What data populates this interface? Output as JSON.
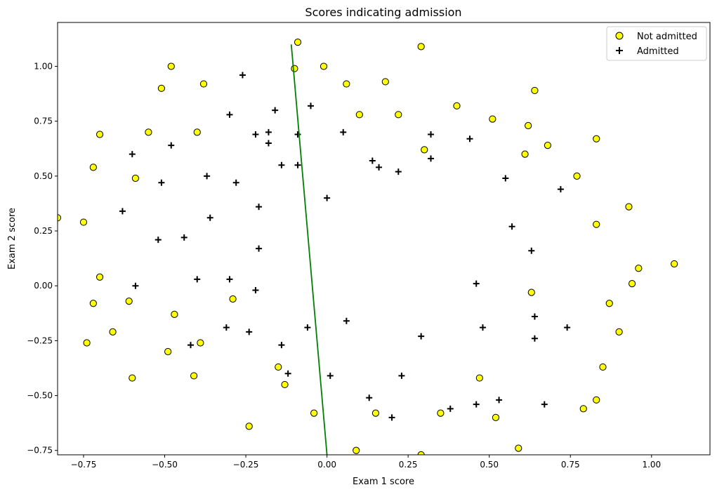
{
  "chart_data": {
    "type": "scatter",
    "title": "Scores indicating admission",
    "xlabel": "Exam 1 score",
    "ylabel": "Exam 2 score",
    "xlim": [
      -0.83,
      1.18
    ],
    "ylim": [
      -0.77,
      1.2
    ],
    "x_ticks": [
      -0.75,
      -0.5,
      -0.25,
      0.0,
      0.25,
      0.5,
      0.75,
      1.0
    ],
    "x_tick_labels": [
      "−0.75",
      "−0.50",
      "−0.25",
      "0.00",
      "0.25",
      "0.50",
      "0.75",
      "1.00"
    ],
    "y_ticks": [
      -0.75,
      -0.5,
      -0.25,
      0.0,
      0.25,
      0.5,
      0.75,
      1.0
    ],
    "y_tick_labels": [
      "−0.75",
      "−0.50",
      "−0.25",
      "0.00",
      "0.25",
      "0.50",
      "0.75",
      "1.00"
    ],
    "grid": false,
    "legend_position": "top-right",
    "series": [
      {
        "name": "Not admitted",
        "marker": "circle",
        "color": "#ffff00",
        "edge_color": "#000000",
        "points": [
          [
            -0.09,
            1.11
          ],
          [
            0.29,
            1.09
          ],
          [
            -0.48,
            1.0
          ],
          [
            -0.01,
            1.0
          ],
          [
            -0.1,
            0.99
          ],
          [
            -0.51,
            0.9
          ],
          [
            -0.38,
            0.92
          ],
          [
            0.06,
            0.92
          ],
          [
            0.18,
            0.93
          ],
          [
            0.64,
            0.89
          ],
          [
            0.4,
            0.82
          ],
          [
            0.1,
            0.78
          ],
          [
            0.22,
            0.78
          ],
          [
            0.51,
            0.76
          ],
          [
            0.62,
            0.73
          ],
          [
            -0.7,
            0.69
          ],
          [
            -0.55,
            0.7
          ],
          [
            -0.4,
            0.7
          ],
          [
            0.68,
            0.64
          ],
          [
            0.83,
            0.67
          ],
          [
            0.3,
            0.62
          ],
          [
            0.61,
            0.6
          ],
          [
            -0.72,
            0.54
          ],
          [
            -0.59,
            0.49
          ],
          [
            0.77,
            0.5
          ],
          [
            0.93,
            0.36
          ],
          [
            -0.83,
            0.31
          ],
          [
            -0.75,
            0.29
          ],
          [
            0.83,
            0.28
          ],
          [
            1.07,
            0.1
          ],
          [
            0.96,
            0.08
          ],
          [
            -0.7,
            0.04
          ],
          [
            0.94,
            0.01
          ],
          [
            0.63,
            -0.03
          ],
          [
            -0.72,
            -0.08
          ],
          [
            -0.61,
            -0.07
          ],
          [
            -0.29,
            -0.06
          ],
          [
            0.87,
            -0.08
          ],
          [
            -0.47,
            -0.13
          ],
          [
            0.9,
            -0.21
          ],
          [
            -0.66,
            -0.21
          ],
          [
            -0.74,
            -0.26
          ],
          [
            -0.39,
            -0.26
          ],
          [
            -0.49,
            -0.3
          ],
          [
            0.85,
            -0.37
          ],
          [
            -0.15,
            -0.37
          ],
          [
            -0.13,
            -0.45
          ],
          [
            -0.6,
            -0.42
          ],
          [
            -0.41,
            -0.41
          ],
          [
            0.47,
            -0.42
          ],
          [
            0.83,
            -0.52
          ],
          [
            0.79,
            -0.56
          ],
          [
            0.15,
            -0.58
          ],
          [
            0.35,
            -0.58
          ],
          [
            -0.04,
            -0.58
          ],
          [
            0.52,
            -0.6
          ],
          [
            -0.24,
            -0.64
          ],
          [
            0.59,
            -0.74
          ],
          [
            0.09,
            -0.75
          ],
          [
            0.29,
            -0.77
          ]
        ]
      },
      {
        "name": "Admitted",
        "marker": "plus",
        "color": "#000000",
        "points": [
          [
            -0.26,
            0.96
          ],
          [
            -0.05,
            0.82
          ],
          [
            -0.3,
            0.78
          ],
          [
            -0.16,
            0.8
          ],
          [
            -0.22,
            0.69
          ],
          [
            -0.18,
            0.7
          ],
          [
            -0.09,
            0.69
          ],
          [
            0.05,
            0.7
          ],
          [
            0.32,
            0.69
          ],
          [
            0.44,
            0.67
          ],
          [
            -0.48,
            0.64
          ],
          [
            -0.18,
            0.65
          ],
          [
            -0.6,
            0.6
          ],
          [
            0.14,
            0.57
          ],
          [
            0.32,
            0.58
          ],
          [
            -0.14,
            0.55
          ],
          [
            -0.09,
            0.55
          ],
          [
            0.16,
            0.54
          ],
          [
            0.22,
            0.52
          ],
          [
            -0.37,
            0.5
          ],
          [
            -0.51,
            0.47
          ],
          [
            -0.28,
            0.47
          ],
          [
            0.55,
            0.49
          ],
          [
            0.72,
            0.44
          ],
          [
            0.0,
            0.4
          ],
          [
            -0.21,
            0.36
          ],
          [
            -0.63,
            0.34
          ],
          [
            -0.36,
            0.31
          ],
          [
            0.57,
            0.27
          ],
          [
            -0.52,
            0.21
          ],
          [
            -0.44,
            0.22
          ],
          [
            -0.21,
            0.17
          ],
          [
            0.63,
            0.16
          ],
          [
            -0.4,
            0.03
          ],
          [
            -0.3,
            0.03
          ],
          [
            -0.59,
            0.0
          ],
          [
            0.46,
            0.01
          ],
          [
            -0.22,
            -0.02
          ],
          [
            0.64,
            -0.14
          ],
          [
            0.06,
            -0.16
          ],
          [
            -0.31,
            -0.19
          ],
          [
            -0.06,
            -0.19
          ],
          [
            0.48,
            -0.19
          ],
          [
            0.74,
            -0.19
          ],
          [
            -0.24,
            -0.21
          ],
          [
            0.29,
            -0.23
          ],
          [
            0.64,
            -0.24
          ],
          [
            -0.42,
            -0.27
          ],
          [
            -0.14,
            -0.27
          ],
          [
            -0.12,
            -0.4
          ],
          [
            0.01,
            -0.41
          ],
          [
            0.23,
            -0.41
          ],
          [
            0.13,
            -0.51
          ],
          [
            0.53,
            -0.52
          ],
          [
            0.46,
            -0.54
          ],
          [
            0.67,
            -0.54
          ],
          [
            0.38,
            -0.56
          ],
          [
            0.2,
            -0.6
          ]
        ]
      }
    ],
    "decision_boundary": {
      "color": "#008000",
      "points": [
        [
          -0.11,
          1.1
        ],
        [
          0.0,
          -0.77
        ]
      ]
    }
  }
}
